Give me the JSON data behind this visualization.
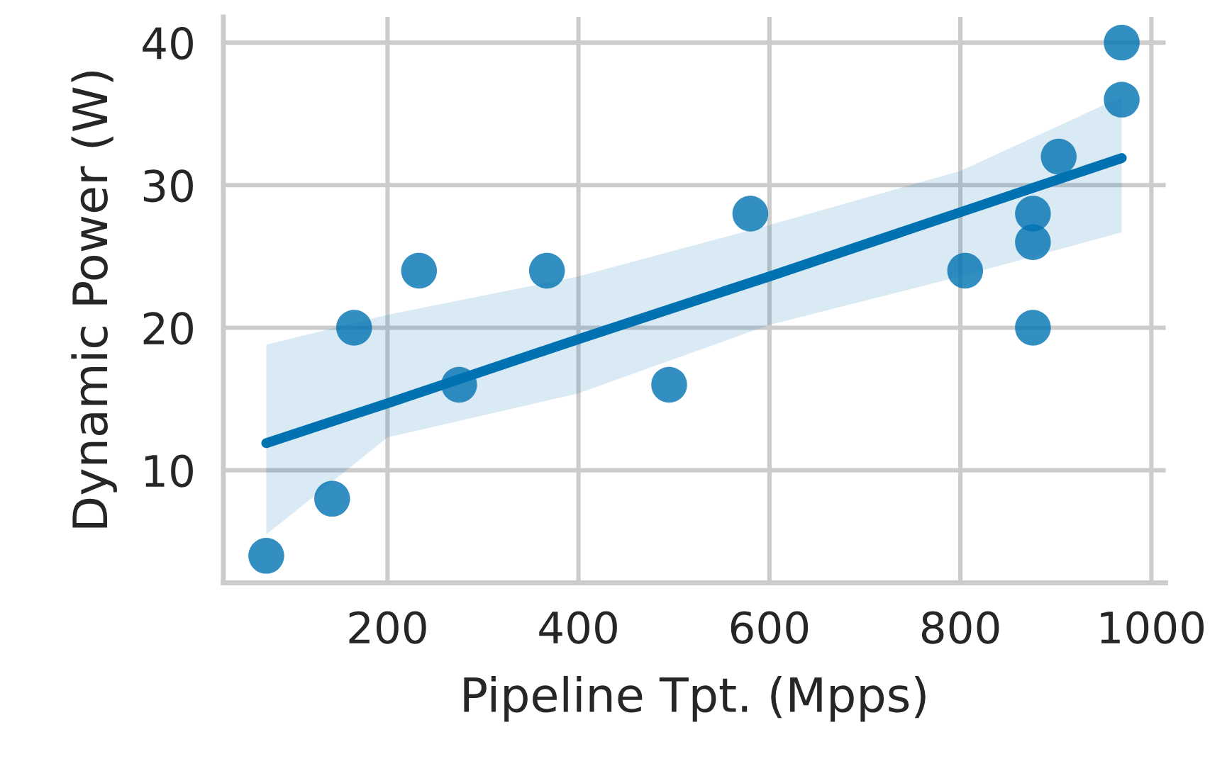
{
  "chart_data": {
    "type": "scatter",
    "xlabel": "Pipeline Tpt. (Mpps)",
    "ylabel": "Dynamic Power (W)",
    "xlim": [
      28,
      1015
    ],
    "ylim": [
      2.1,
      41.8
    ],
    "xticks": [
      200,
      400,
      600,
      800,
      1000
    ],
    "yticks": [
      10,
      20,
      30,
      40
    ],
    "grid": true,
    "series": [
      {
        "marker": "circle",
        "color": "#0072b2",
        "x": [
          73,
          142,
          165,
          233,
          275,
          367,
          495,
          580,
          805,
          876,
          876,
          876,
          903,
          969,
          969
        ],
        "values": [
          4,
          8,
          20,
          24,
          16,
          24,
          16,
          28,
          24,
          20,
          26,
          28,
          32,
          36,
          40
        ]
      },
      {
        "type": "line",
        "color": "#0072b2",
        "x": [
          73,
          200,
          400,
          600,
          800,
          969
        ],
        "values": [
          11.9,
          14.7,
          19.2,
          23.6,
          28.1,
          31.9
        ],
        "lower": [
          5.5,
          12.3,
          15.4,
          20.2,
          23.6,
          26.7
        ],
        "upper": [
          18.8,
          20.9,
          23.6,
          27.2,
          31.0,
          36.2
        ]
      }
    ]
  }
}
